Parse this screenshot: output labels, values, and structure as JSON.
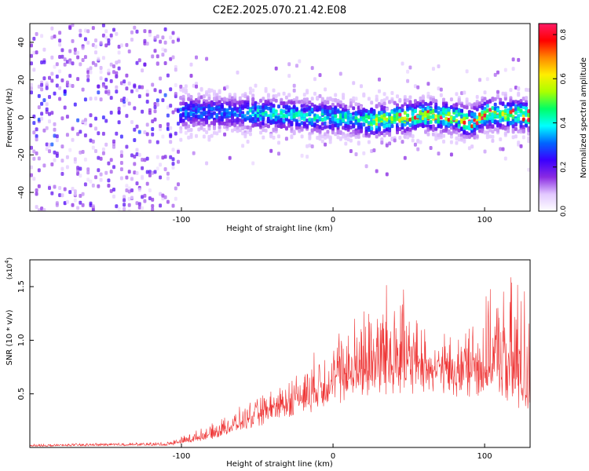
{
  "title": "C2E2.2025.070.21.42.E08",
  "chart_data": [
    {
      "type": "heatmap",
      "xlabel": "Height of straight line (km)",
      "ylabel": "Frequency (Hz)",
      "xlim": [
        -200,
        130
      ],
      "ylim": [
        -50,
        50
      ],
      "xticks": [
        -100,
        0,
        100
      ],
      "yticks": [
        -40,
        -20,
        0,
        20,
        40
      ],
      "colorbar": {
        "label": "Normalized spectral amplitude",
        "range": [
          0.0,
          0.85
        ],
        "ticks": [
          "0.0",
          "0.2",
          "0.4",
          "0.6",
          "0.8"
        ],
        "colors": [
          "#ffffff",
          "#e2c8ff",
          "#8a2be2",
          "#3a00ff",
          "#0066ff",
          "#00ffff",
          "#00ff66",
          "#aaff00",
          "#ffee00",
          "#ff8800",
          "#ff0000",
          "#ff1a66"
        ]
      },
      "peak_band": {
        "x": [
          -200,
          -150,
          -110,
          -100,
          -50,
          0,
          25,
          45,
          60,
          80,
          90,
          100,
          130
        ],
        "center_hz": [
          0,
          0,
          0,
          3,
          2,
          0,
          -2,
          0,
          1,
          0,
          -3,
          2,
          1
        ]
      }
    },
    {
      "type": "line",
      "xlabel": "Height of straight line (km)",
      "ylabel": "SNR (10 * v/v)",
      "multiplier": "(x10",
      "multiplier_exp": "4",
      "multiplier_close": ")",
      "xlim": [
        -200,
        130
      ],
      "ylim": [
        0,
        1.75
      ],
      "xticks": [
        -100,
        0,
        100
      ],
      "yticks": [
        "0.5",
        "1.0",
        "1.5"
      ],
      "ytick_values": [
        0.5,
        1.0,
        1.5
      ],
      "color": "#ee3333",
      "envelope": {
        "x": [
          -200,
          -150,
          -110,
          -100,
          -80,
          -60,
          -40,
          -20,
          0,
          20,
          40,
          60,
          80,
          100,
          110,
          120,
          130
        ],
        "base": [
          0.01,
          0.02,
          0.02,
          0.04,
          0.1,
          0.2,
          0.3,
          0.4,
          0.52,
          0.6,
          0.65,
          0.65,
          0.6,
          0.6,
          0.6,
          0.5,
          0.4
        ],
        "high": [
          0.03,
          0.04,
          0.05,
          0.1,
          0.2,
          0.35,
          0.5,
          0.7,
          0.95,
          1.25,
          1.5,
          1.0,
          0.95,
          1.3,
          1.4,
          1.6,
          1.45
        ]
      }
    }
  ]
}
